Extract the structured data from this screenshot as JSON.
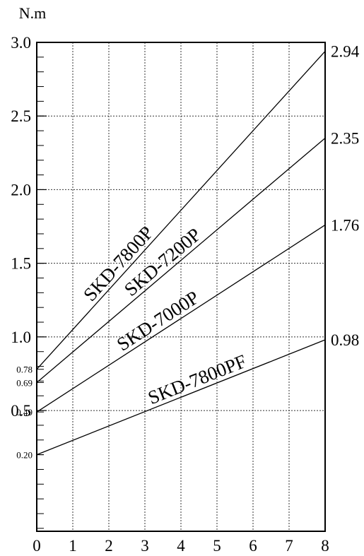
{
  "chart_data": {
    "type": "line",
    "ylabel": "N.m",
    "xlim": [
      0,
      8
    ],
    "ylim": [
      0,
      3.0
    ],
    "grid": true,
    "x_ticks": [
      {
        "value": 0,
        "label": "0"
      },
      {
        "value": 1,
        "label": "1"
      },
      {
        "value": 2,
        "label": "2"
      },
      {
        "value": 3,
        "label": "3"
      },
      {
        "value": 4,
        "label": "4"
      },
      {
        "value": 5,
        "label": "5"
      },
      {
        "value": 6,
        "label": "6"
      },
      {
        "value": 7,
        "label": "7"
      },
      {
        "value": 8,
        "label": "8"
      }
    ],
    "y_major_ticks": [
      {
        "value": 3.0,
        "label": "3.0"
      },
      {
        "value": 2.5,
        "label": "2.5"
      },
      {
        "value": 2.0,
        "label": "2.0"
      },
      {
        "value": 1.5,
        "label": "1.5"
      },
      {
        "value": 1.0,
        "label": "1.0"
      },
      {
        "value": 0.5,
        "label": "0.5"
      }
    ],
    "y_minor_labels": [
      {
        "value": 0.78,
        "label": "0.78"
      },
      {
        "value": 0.69,
        "label": "0.69"
      },
      {
        "value": 0.49,
        "label": "0.49"
      },
      {
        "value": 0.2,
        "label": "0.20"
      }
    ],
    "y_minor_step": 0.1,
    "series": [
      {
        "name": "SKD-7800P",
        "x": [
          0,
          8
        ],
        "y": [
          0.78,
          2.94
        ],
        "end_label": "2.94"
      },
      {
        "name": "SKD-7200P",
        "x": [
          0,
          8
        ],
        "y": [
          0.69,
          2.35
        ],
        "end_label": "2.35"
      },
      {
        "name": "SKD-7000P",
        "x": [
          0,
          8
        ],
        "y": [
          0.49,
          1.76
        ],
        "end_label": "1.76"
      },
      {
        "name": "SKD-7800PF",
        "x": [
          0,
          8
        ],
        "y": [
          0.2,
          0.98
        ],
        "end_label": "0.98"
      }
    ]
  }
}
